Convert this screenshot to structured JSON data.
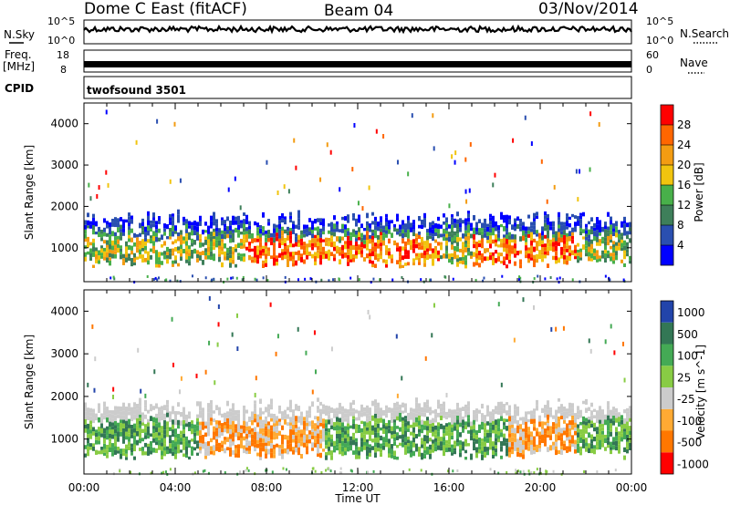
{
  "header": {
    "station": "Dome C East (fitACF)",
    "beam": "Beam 04",
    "date": "03/Nov/2014"
  },
  "panels": {
    "nsky_label": "N.Sky",
    "nsearch_label": "N.Search",
    "nsky_tick_top": "10^5",
    "nsky_tick_bottom": "10^0",
    "nsearch_tick_top": "10^5",
    "nsearch_tick_bottom": "10^0",
    "freq_label_1": "Freq.",
    "freq_label_2": "[MHz]",
    "freq_tick_top": "18",
    "freq_tick_bottom": "8",
    "nave_label": "Nave",
    "nave_tick_top": "60",
    "nave_tick_bottom": "0",
    "cpid_label": "CPID",
    "cpid_value": "twofsound 3501"
  },
  "colors": {
    "power_scale": [
      "#0000ff",
      "#2a4fb0",
      "#3e7f5a",
      "#48b04a",
      "#f1c40f",
      "#f39c12",
      "#ff6600",
      "#ff0000"
    ],
    "velocity_scale": [
      "#ff0000",
      "#ff7700",
      "#ffaa33",
      "#cccccc",
      "#88cc44",
      "#44aa55",
      "#337755",
      "#2244aa"
    ]
  },
  "chart_data": [
    {
      "type": "heatmap",
      "title": "Power",
      "xlabel": "Time UT",
      "ylabel": "Slant Range [km]",
      "xlim": [
        "00:00",
        "24:00"
      ],
      "ylim": [
        180,
        4500
      ],
      "y_ticks": [
        "1000",
        "2000",
        "3000",
        "4000"
      ],
      "x_ticks": [
        "00:00",
        "04:00",
        "08:00",
        "12:00",
        "16:00",
        "20:00",
        "00:00"
      ],
      "colorbar": {
        "label": "Power [dB]",
        "ticks": [
          "4",
          "8",
          "12",
          "16",
          "20",
          "24",
          "28"
        ]
      },
      "echo_band_km": [
        500,
        1800
      ],
      "peak_power_hours_ut": [
        7.5,
        15
      ]
    },
    {
      "type": "heatmap",
      "title": "Velocity",
      "xlabel": "Time UT",
      "ylabel": "Slant Range [km]",
      "xlim": [
        "00:00",
        "24:00"
      ],
      "ylim": [
        180,
        4500
      ],
      "y_ticks": [
        "1000",
        "2000",
        "3000",
        "4000"
      ],
      "x_ticks": [
        "00:00",
        "04:00",
        "08:00",
        "12:00",
        "16:00",
        "20:00",
        "00:00"
      ],
      "colorbar": {
        "label": "Velocity [m s^-1]",
        "ticks": [
          "1000",
          "500",
          "100",
          "25",
          "-25",
          "-100",
          "-500",
          "-1000"
        ]
      },
      "echo_band_km": [
        500,
        1900
      ]
    }
  ]
}
